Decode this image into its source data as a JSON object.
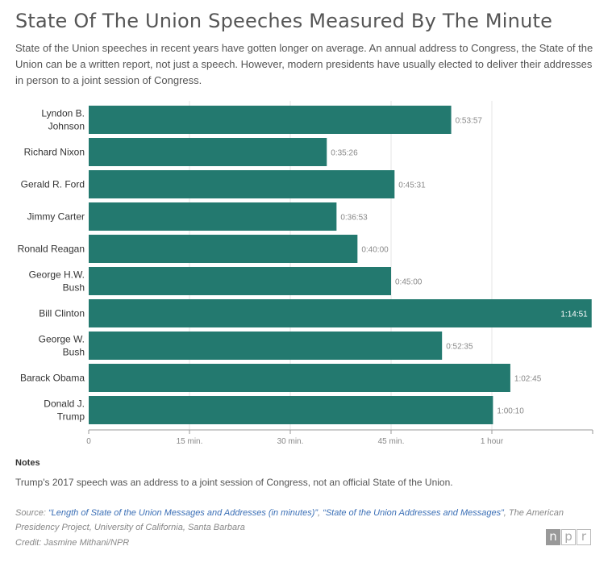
{
  "header": {
    "title": "State Of The Union Speeches Measured By The Minute",
    "subtitle": "State of the Union speeches in recent years have gotten longer on average. An annual address to Congress, the State of the Union can be a written report, not just a speech. However, modern presidents have usually elected to deliver their addresses in person to a joint session of Congress."
  },
  "chart_data": {
    "type": "bar",
    "orientation": "horizontal",
    "categories": [
      "Lyndon B. Johnson",
      "Richard Nixon",
      "Gerald R. Ford",
      "Jimmy Carter",
      "Ronald Reagan",
      "George H.W. Bush",
      "Bill Clinton",
      "George W. Bush",
      "Barack Obama",
      "Donald J. Trump"
    ],
    "category_lines": [
      [
        "Lyndon B.",
        "Johnson"
      ],
      [
        "Richard Nixon"
      ],
      [
        "Gerald R. Ford"
      ],
      [
        "Jimmy Carter"
      ],
      [
        "Ronald Reagan"
      ],
      [
        "George H.W.",
        "Bush"
      ],
      [
        "Bill Clinton"
      ],
      [
        "George W.",
        "Bush"
      ],
      [
        "Barack Obama"
      ],
      [
        "Donald J.",
        "Trump"
      ]
    ],
    "values_minutes": [
      53.95,
      35.433,
      45.517,
      36.883,
      40.0,
      45.0,
      74.85,
      52.583,
      62.75,
      60.167
    ],
    "data_labels": [
      "0:53:57",
      "0:35:26",
      "0:45:31",
      "0:36:53",
      "0:40:00",
      "0:45:00",
      "1:14:51",
      "0:52:35",
      "1:02:45",
      "1:00:10"
    ],
    "x_ticks": [
      0,
      15,
      30,
      45,
      60
    ],
    "x_tick_labels": [
      "0",
      "15 min.",
      "30 min.",
      "45 min.",
      "1 hour"
    ],
    "xlim": [
      0,
      75
    ],
    "bar_color": "#23796f",
    "grid": true
  },
  "notes": {
    "heading": "Notes",
    "text": "Trump's 2017 speech was an address to a joint session of Congress, not an official State of the Union."
  },
  "source": {
    "prefix": "Source: ",
    "link1": "“Length of State of the Union Messages and Addresses (in minutes)”",
    "sep": ", ",
    "link2": "“State of the Union Addresses and Messages”",
    "suffix": ", The American Presidency Project, University of California, Santa Barbara"
  },
  "credit": "Credit: Jasmine Mithani/NPR",
  "logo": [
    "n",
    "p",
    "r"
  ]
}
